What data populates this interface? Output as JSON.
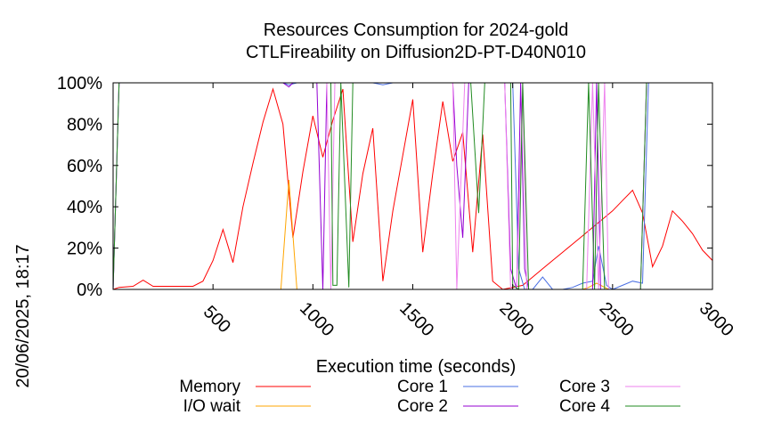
{
  "chart_data": {
    "type": "line",
    "title": "Resources Consumption for 2024-gold",
    "subtitle": "CTLFireability on Diffusion2D-PT-D40N010",
    "xlabel": "Execution time (seconds)",
    "ylabel": "",
    "side_label": "20/06/2025, 18:17",
    "xlim": [
      0,
      3000
    ],
    "ylim": [
      0,
      100
    ],
    "x_ticks": [
      500,
      1000,
      1500,
      2000,
      2500,
      3000
    ],
    "y_ticks": [
      0,
      20,
      40,
      60,
      80,
      100
    ],
    "x_tick_labels": [
      "500",
      "1000",
      "1500",
      "2000",
      "2500",
      "3000"
    ],
    "y_tick_labels": [
      "0%",
      "20%",
      "40%",
      "60%",
      "80%",
      "100%"
    ],
    "grid": false,
    "legend": "bottom",
    "series": [
      {
        "name": "Memory",
        "color": "#ff0000",
        "x": [
          0,
          30,
          100,
          150,
          200,
          300,
          350,
          400,
          450,
          500,
          550,
          600,
          650,
          700,
          750,
          800,
          850,
          900,
          950,
          1000,
          1050,
          1100,
          1150,
          1200,
          1250,
          1300,
          1350,
          1400,
          1450,
          1500,
          1550,
          1600,
          1650,
          1700,
          1750,
          1800,
          1850,
          1900,
          1950,
          2000,
          2050,
          2100,
          2150,
          2200,
          2250,
          2300,
          2350,
          2400,
          2450,
          2500,
          2550,
          2600,
          2650,
          2700,
          2750,
          2800,
          2850,
          2900,
          2950,
          3000
        ],
        "values": [
          0,
          1,
          1.5,
          4.5,
          1.5,
          1.5,
          1.5,
          1.5,
          4,
          14,
          29,
          13,
          40,
          61,
          81,
          97,
          80,
          25,
          57,
          84,
          64,
          82,
          97,
          23,
          56,
          78,
          4,
          38,
          65,
          92,
          18,
          56,
          91,
          62,
          76,
          18,
          75,
          4,
          0,
          1,
          2,
          6,
          10,
          14,
          18,
          22,
          26,
          30,
          34,
          38,
          43,
          48,
          37,
          11,
          21,
          38,
          33,
          27,
          19,
          14
        ]
      },
      {
        "name": "I/O wait",
        "color": "#ffa500",
        "x": [
          0,
          840,
          880,
          920,
          960,
          2000,
          2350,
          2380,
          2420,
          2480,
          3000
        ],
        "values": [
          0,
          0,
          53,
          0,
          0,
          0,
          0,
          1,
          3,
          0,
          0
        ]
      },
      {
        "name": "Core 1",
        "color": "#4a6fe3",
        "x": [
          0,
          30,
          850,
          880,
          920,
          960,
          1300,
          1350,
          1400,
          2000,
          2030,
          2060,
          2100,
          2150,
          2200,
          2250,
          2300,
          2350,
          2400,
          2430,
          2470,
          2500,
          2550,
          2600,
          2650,
          2680,
          3000
        ],
        "values": [
          0,
          100,
          100,
          99,
          100,
          100,
          100,
          99,
          100,
          100,
          10,
          0,
          0,
          6,
          0,
          0,
          1,
          3,
          4,
          21,
          2,
          0,
          2,
          4,
          3,
          100,
          100
        ]
      },
      {
        "name": "Core 2",
        "color": "#9400d3",
        "x": [
          0,
          30,
          850,
          880,
          900,
          1020,
          1050,
          1070,
          1090,
          1180,
          1200,
          1700,
          1720,
          1750,
          1780,
          1960,
          1990,
          2020,
          2040,
          2060,
          2080,
          2400,
          2420,
          2440,
          2460,
          2640,
          2670,
          3000
        ],
        "values": [
          0,
          100,
          100,
          98,
          100,
          100,
          0,
          100,
          100,
          100,
          100,
          100,
          60,
          25,
          100,
          100,
          10,
          0,
          100,
          10,
          0,
          0,
          100,
          0,
          0,
          0,
          100,
          100
        ]
      },
      {
        "name": "Core 3",
        "color": "#ee82ee",
        "x": [
          0,
          30,
          1070,
          1090,
          1110,
          1700,
          1720,
          1760,
          1960,
          1990,
          2020,
          2050,
          2070,
          2370,
          2400,
          2430,
          2460,
          2480,
          2500,
          2640,
          2670,
          3000
        ],
        "values": [
          0,
          100,
          100,
          0,
          100,
          100,
          0,
          100,
          100,
          0,
          0,
          100,
          0,
          0,
          100,
          0,
          100,
          0,
          0,
          0,
          100,
          100
        ]
      },
      {
        "name": "Core 4",
        "color": "#228b22",
        "x": [
          0,
          30,
          1090,
          1100,
          1120,
          1140,
          1180,
          1200,
          1220,
          1790,
          1830,
          1860,
          1960,
          1990,
          2000,
          2030,
          2050,
          2080,
          2350,
          2380,
          2410,
          2430,
          2460,
          2640,
          2670,
          3000
        ],
        "values": [
          0,
          100,
          100,
          2,
          2,
          100,
          1,
          100,
          100,
          100,
          37,
          100,
          100,
          100,
          2,
          0,
          100,
          0,
          0,
          100,
          0,
          100,
          0,
          0,
          100,
          100
        ]
      }
    ]
  }
}
